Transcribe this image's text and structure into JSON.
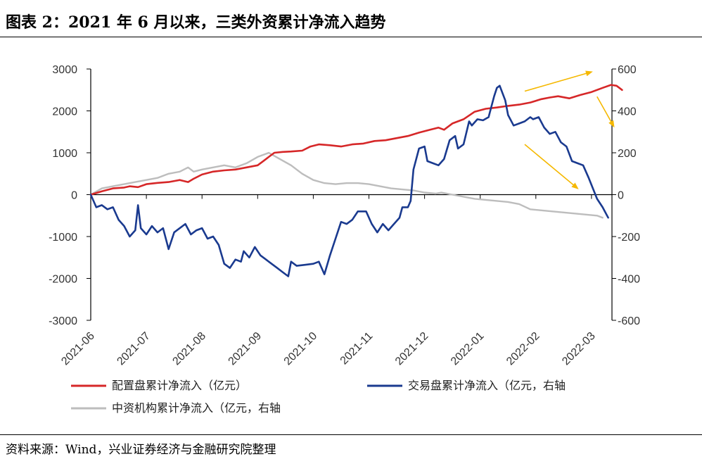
{
  "header": {
    "title": "图表 2：2021 年 6 月以来，三类外资累计净流入趋势"
  },
  "footer": {
    "source": "资料来源：Wind，兴业证券经济与金融研究院整理"
  },
  "chart_data": {
    "type": "line",
    "x_labels": [
      "2021-06",
      "2021-07",
      "2021-08",
      "2021-09",
      "2021-10",
      "2021-11",
      "2021-12",
      "2022-01",
      "2022-02",
      "2022-03"
    ],
    "x_range": [
      0,
      9.55
    ],
    "left_axis": {
      "ylim": [
        -3000,
        3000
      ],
      "ticks": [
        3000,
        2000,
        1000,
        0,
        -1000,
        -2000,
        -3000
      ]
    },
    "right_axis": {
      "ylim": [
        -600,
        600
      ],
      "ticks": [
        600,
        400,
        200,
        0,
        -200,
        -400,
        -600
      ]
    },
    "grid": false,
    "legend_position": "bottom",
    "colors": {
      "allocation": "#d62728",
      "trading": "#1a3a8f",
      "intermediary": "#bdbdbd",
      "arrow": "#f5b800"
    },
    "series": [
      {
        "key": "allocation",
        "name": "配置盘累计净流入（亿元）",
        "axis": "left",
        "points": [
          [
            0,
            0
          ],
          [
            0.2,
            80
          ],
          [
            0.4,
            150
          ],
          [
            0.6,
            170
          ],
          [
            0.7,
            200
          ],
          [
            0.85,
            180
          ],
          [
            1.0,
            250
          ],
          [
            1.2,
            280
          ],
          [
            1.4,
            300
          ],
          [
            1.6,
            350
          ],
          [
            1.75,
            300
          ],
          [
            1.85,
            380
          ],
          [
            2.0,
            480
          ],
          [
            2.2,
            550
          ],
          [
            2.4,
            580
          ],
          [
            2.6,
            600
          ],
          [
            2.8,
            650
          ],
          [
            3.0,
            700
          ],
          [
            3.1,
            800
          ],
          [
            3.2,
            900
          ],
          [
            3.3,
            1000
          ],
          [
            3.45,
            1020
          ],
          [
            3.6,
            1030
          ],
          [
            3.8,
            1050
          ],
          [
            3.95,
            1150
          ],
          [
            4.1,
            1200
          ],
          [
            4.3,
            1180
          ],
          [
            4.5,
            1150
          ],
          [
            4.7,
            1200
          ],
          [
            4.9,
            1220
          ],
          [
            5.1,
            1280
          ],
          [
            5.3,
            1300
          ],
          [
            5.5,
            1350
          ],
          [
            5.7,
            1400
          ],
          [
            5.9,
            1480
          ],
          [
            6.1,
            1550
          ],
          [
            6.25,
            1600
          ],
          [
            6.35,
            1550
          ],
          [
            6.5,
            1700
          ],
          [
            6.7,
            1800
          ],
          [
            6.9,
            1980
          ],
          [
            7.1,
            2050
          ],
          [
            7.3,
            2080
          ],
          [
            7.5,
            2120
          ],
          [
            7.7,
            2150
          ],
          [
            7.9,
            2200
          ],
          [
            8.1,
            2280
          ],
          [
            8.25,
            2320
          ],
          [
            8.4,
            2350
          ],
          [
            8.6,
            2300
          ],
          [
            8.8,
            2380
          ],
          [
            9.0,
            2450
          ],
          [
            9.2,
            2550
          ],
          [
            9.35,
            2620
          ],
          [
            9.45,
            2600
          ],
          [
            9.55,
            2500
          ]
        ]
      },
      {
        "key": "trading",
        "name": "交易盘累计净流入（亿元，右轴",
        "axis": "right",
        "points": [
          [
            0,
            0
          ],
          [
            0.1,
            -60
          ],
          [
            0.2,
            -50
          ],
          [
            0.3,
            -70
          ],
          [
            0.4,
            -60
          ],
          [
            0.5,
            -120
          ],
          [
            0.6,
            -150
          ],
          [
            0.7,
            -200
          ],
          [
            0.8,
            -170
          ],
          [
            0.85,
            -50
          ],
          [
            0.9,
            -160
          ],
          [
            1.0,
            -190
          ],
          [
            1.1,
            -150
          ],
          [
            1.2,
            -180
          ],
          [
            1.3,
            -160
          ],
          [
            1.4,
            -260
          ],
          [
            1.5,
            -180
          ],
          [
            1.6,
            -160
          ],
          [
            1.7,
            -140
          ],
          [
            1.8,
            -190
          ],
          [
            1.9,
            -170
          ],
          [
            2.0,
            -160
          ],
          [
            2.1,
            -210
          ],
          [
            2.2,
            -200
          ],
          [
            2.3,
            -240
          ],
          [
            2.4,
            -330
          ],
          [
            2.5,
            -350
          ],
          [
            2.6,
            -310
          ],
          [
            2.7,
            -320
          ],
          [
            2.75,
            -270
          ],
          [
            2.85,
            -300
          ],
          [
            2.95,
            -250
          ],
          [
            3.05,
            -290
          ],
          [
            3.15,
            -310
          ],
          [
            3.25,
            -330
          ],
          [
            3.35,
            -350
          ],
          [
            3.45,
            -370
          ],
          [
            3.55,
            -390
          ],
          [
            3.6,
            -320
          ],
          [
            3.7,
            -340
          ],
          [
            3.85,
            -335
          ],
          [
            4.0,
            -330
          ],
          [
            4.1,
            -320
          ],
          [
            4.2,
            -380
          ],
          [
            4.3,
            -290
          ],
          [
            4.4,
            -210
          ],
          [
            4.5,
            -130
          ],
          [
            4.6,
            -140
          ],
          [
            4.7,
            -120
          ],
          [
            4.8,
            -80
          ],
          [
            4.95,
            -80
          ],
          [
            5.05,
            -140
          ],
          [
            5.15,
            -180
          ],
          [
            5.25,
            -140
          ],
          [
            5.35,
            -170
          ],
          [
            5.45,
            -140
          ],
          [
            5.55,
            -110
          ],
          [
            5.6,
            -60
          ],
          [
            5.7,
            -60
          ],
          [
            5.75,
            -30
          ],
          [
            5.8,
            120
          ],
          [
            5.9,
            220
          ],
          [
            6.0,
            230
          ],
          [
            6.05,
            160
          ],
          [
            6.15,
            150
          ],
          [
            6.25,
            140
          ],
          [
            6.35,
            170
          ],
          [
            6.45,
            260
          ],
          [
            6.55,
            280
          ],
          [
            6.6,
            220
          ],
          [
            6.7,
            240
          ],
          [
            6.8,
            350
          ],
          [
            6.85,
            330
          ],
          [
            6.95,
            360
          ],
          [
            7.05,
            355
          ],
          [
            7.15,
            370
          ],
          [
            7.25,
            470
          ],
          [
            7.3,
            510
          ],
          [
            7.35,
            520
          ],
          [
            7.45,
            450
          ],
          [
            7.5,
            380
          ],
          [
            7.6,
            330
          ],
          [
            7.7,
            340
          ],
          [
            7.8,
            350
          ],
          [
            7.9,
            370
          ],
          [
            7.95,
            360
          ],
          [
            8.05,
            370
          ],
          [
            8.15,
            320
          ],
          [
            8.25,
            290
          ],
          [
            8.35,
            300
          ],
          [
            8.45,
            250
          ],
          [
            8.55,
            230
          ],
          [
            8.65,
            160
          ],
          [
            8.75,
            150
          ],
          [
            8.85,
            140
          ],
          [
            8.95,
            80
          ],
          [
            9.1,
            -20
          ],
          [
            9.2,
            -60
          ],
          [
            9.3,
            -110
          ]
        ]
      },
      {
        "key": "intermediary",
        "name": "中资机构累计净流入（亿元，右轴",
        "axis": "right",
        "points": [
          [
            0,
            0
          ],
          [
            0.2,
            30
          ],
          [
            0.4,
            40
          ],
          [
            0.6,
            50
          ],
          [
            0.8,
            60
          ],
          [
            1.0,
            70
          ],
          [
            1.2,
            80
          ],
          [
            1.4,
            100
          ],
          [
            1.6,
            110
          ],
          [
            1.75,
            130
          ],
          [
            1.85,
            110
          ],
          [
            2.0,
            120
          ],
          [
            2.2,
            130
          ],
          [
            2.4,
            140
          ],
          [
            2.6,
            130
          ],
          [
            2.8,
            150
          ],
          [
            3.0,
            180
          ],
          [
            3.2,
            200
          ],
          [
            3.4,
            170
          ],
          [
            3.6,
            140
          ],
          [
            3.8,
            100
          ],
          [
            4.0,
            70
          ],
          [
            4.2,
            55
          ],
          [
            4.4,
            50
          ],
          [
            4.6,
            55
          ],
          [
            4.8,
            55
          ],
          [
            5.0,
            50
          ],
          [
            5.2,
            40
          ],
          [
            5.4,
            30
          ],
          [
            5.6,
            25
          ],
          [
            5.8,
            20
          ],
          [
            6.0,
            10
          ],
          [
            6.2,
            5
          ],
          [
            6.3,
            10
          ],
          [
            6.5,
            0
          ],
          [
            6.7,
            -10
          ],
          [
            6.9,
            -20
          ],
          [
            7.1,
            -25
          ],
          [
            7.3,
            -30
          ],
          [
            7.5,
            -35
          ],
          [
            7.7,
            -45
          ],
          [
            7.9,
            -70
          ],
          [
            8.1,
            -75
          ],
          [
            8.3,
            -80
          ],
          [
            8.5,
            -85
          ],
          [
            8.7,
            -90
          ],
          [
            8.9,
            -95
          ],
          [
            9.1,
            -100
          ],
          [
            9.2,
            -110
          ]
        ]
      }
    ],
    "annotations": [
      {
        "type": "arrow",
        "from": [
          7.8,
          2470
        ],
        "to": [
          9.0,
          2930
        ]
      },
      {
        "type": "arrow",
        "from": [
          9.1,
          2340
        ],
        "to": [
          9.4,
          1630
        ]
      },
      {
        "type": "arrow",
        "from": [
          7.8,
          1200
        ],
        "to": [
          8.75,
          150
        ]
      }
    ]
  }
}
